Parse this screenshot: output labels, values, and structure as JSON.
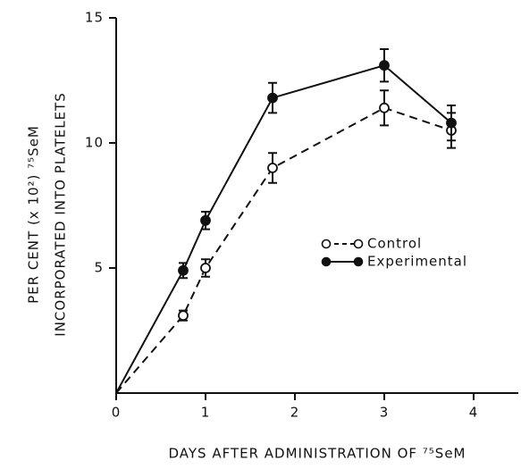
{
  "chart_data": {
    "type": "line",
    "x_label": "DAYS AFTER ADMINISTRATION OF ⁷⁵SeM",
    "y_label": [
      "PER CENT (x 10²) ⁷⁵SeM",
      "INCORPORATED INTO PLATELETS"
    ],
    "xlim": [
      0,
      4.5
    ],
    "xticks": [
      0,
      1,
      2,
      3,
      4
    ],
    "ylim": [
      0,
      15
    ],
    "yticks": [
      5,
      10,
      15
    ],
    "legend": "center right",
    "series": [
      {
        "name": "Control",
        "color": "#111111",
        "marker": "open",
        "dashed": true,
        "x": [
          0,
          0.75,
          1,
          1.75,
          3,
          3.75
        ],
        "values": [
          0,
          3.1,
          5.0,
          9.0,
          11.4,
          10.5
        ],
        "errors": [
          null,
          0.2,
          0.35,
          0.6,
          0.7,
          0.7
        ]
      },
      {
        "name": "Experimental",
        "color": "#111111",
        "marker": "filled",
        "dashed": false,
        "x": [
          0,
          0.75,
          1,
          1.75,
          3,
          3.75
        ],
        "values": [
          0,
          4.9,
          6.9,
          11.8,
          13.1,
          10.8
        ],
        "errors": [
          null,
          0.3,
          0.35,
          0.6,
          0.65,
          0.7
        ]
      }
    ]
  }
}
